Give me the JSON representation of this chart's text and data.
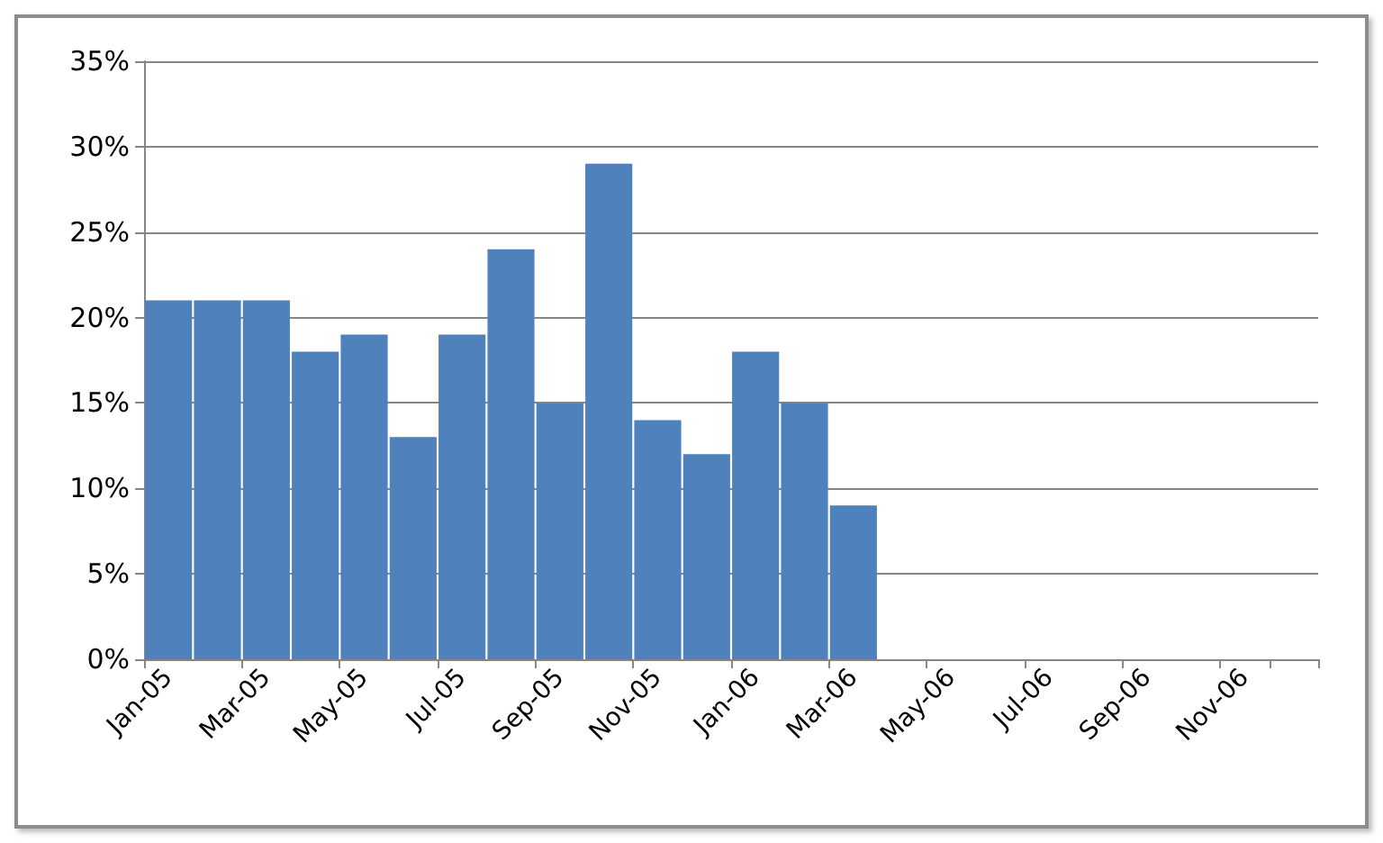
{
  "chart_data": {
    "type": "bar",
    "categories": [
      "Jan-05",
      null,
      "Mar-05",
      null,
      "May-05",
      null,
      "Jul-05",
      null,
      "Sep-05",
      null,
      "Nov-05",
      null,
      "Jan-06",
      null,
      "Mar-06",
      null,
      "May-06",
      null,
      "Jul-06",
      null,
      "Sep-06",
      null,
      "Nov-06",
      null
    ],
    "values": [
      21,
      21,
      21,
      18,
      19,
      13,
      19,
      24,
      15,
      29,
      14,
      12,
      18,
      15,
      9,
      null,
      null,
      null,
      null,
      null,
      null,
      null,
      null,
      null
    ],
    "color": "#4f81bd",
    "ylim": [
      0,
      35
    ],
    "yticks": [
      {
        "value": 0,
        "label": "0%"
      },
      {
        "value": 5,
        "label": "5%"
      },
      {
        "value": 10,
        "label": "10%"
      },
      {
        "value": 15,
        "label": "15%"
      },
      {
        "value": 20,
        "label": "20%"
      },
      {
        "value": 25,
        "label": "25%"
      },
      {
        "value": 30,
        "label": "30%"
      },
      {
        "value": 35,
        "label": "35%"
      }
    ],
    "grid": "y"
  }
}
